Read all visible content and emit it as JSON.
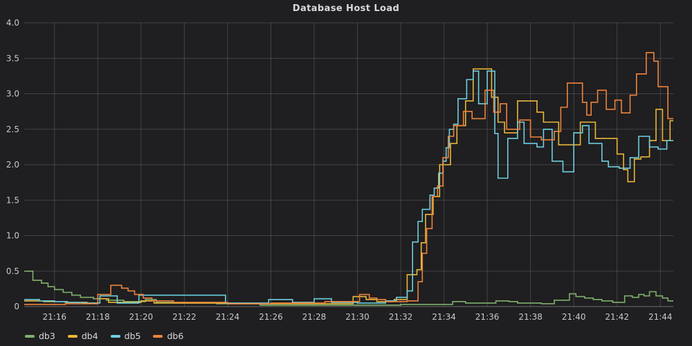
{
  "title": "Database Host Load",
  "chart_data": {
    "type": "line",
    "line_style": "step-after",
    "title": "Database Host Load",
    "xlabel": "",
    "ylabel": "",
    "ylim": [
      0,
      4
    ],
    "grid": true,
    "legend_position": "bottom-left",
    "background_color": "#1f1e20",
    "grid_color": "rgba(255,255,255,0.16)",
    "axis_text_color": "#c9cacb",
    "x_domain_minutes_after_21h": [
      14.6,
      44.6
    ],
    "x_ticks": [
      {
        "minute": 16,
        "label": "21:16"
      },
      {
        "minute": 18,
        "label": "21:18"
      },
      {
        "minute": 20,
        "label": "21:20"
      },
      {
        "minute": 22,
        "label": "21:22"
      },
      {
        "minute": 24,
        "label": "21:24"
      },
      {
        "minute": 26,
        "label": "21:26"
      },
      {
        "minute": 28,
        "label": "21:28"
      },
      {
        "minute": 30,
        "label": "21:30"
      },
      {
        "minute": 32,
        "label": "21:32"
      },
      {
        "minute": 34,
        "label": "21:34"
      },
      {
        "minute": 36,
        "label": "21:36"
      },
      {
        "minute": 38,
        "label": "21:38"
      },
      {
        "minute": 40,
        "label": "21:40"
      },
      {
        "minute": 42,
        "label": "21:42"
      },
      {
        "minute": 44,
        "label": "21:44"
      }
    ],
    "y_ticks": [
      {
        "value": 4.0,
        "label": "4.0"
      },
      {
        "value": 3.5,
        "label": "3.5"
      },
      {
        "value": 3.0,
        "label": "3.0"
      },
      {
        "value": 2.5,
        "label": "2.5"
      },
      {
        "value": 2.0,
        "label": "2.0"
      },
      {
        "value": 1.5,
        "label": "1.5"
      },
      {
        "value": 1.0,
        "label": "1.0"
      },
      {
        "value": 0.5,
        "label": "0.5"
      },
      {
        "value": 0,
        "label": "0"
      }
    ],
    "series": [
      {
        "name": "db3",
        "color": "#7EB26D",
        "points": [
          [
            14.6,
            0.5
          ],
          [
            15.0,
            0.37
          ],
          [
            15.4,
            0.33
          ],
          [
            15.7,
            0.28
          ],
          [
            16.0,
            0.24
          ],
          [
            16.4,
            0.2
          ],
          [
            16.8,
            0.16
          ],
          [
            17.2,
            0.13
          ],
          [
            17.8,
            0.11
          ],
          [
            18.4,
            0.09
          ],
          [
            19.2,
            0.07
          ],
          [
            20.2,
            0.1
          ],
          [
            20.7,
            0.06
          ],
          [
            21.5,
            0.05
          ],
          [
            23.5,
            0.04
          ],
          [
            25.5,
            0.02
          ],
          [
            32.0,
            0.03
          ],
          [
            34.4,
            0.07
          ],
          [
            35.0,
            0.05
          ],
          [
            36.4,
            0.08
          ],
          [
            37.0,
            0.07
          ],
          [
            37.4,
            0.05
          ],
          [
            38.5,
            0.04
          ],
          [
            39.1,
            0.09
          ],
          [
            39.8,
            0.18
          ],
          [
            40.1,
            0.14
          ],
          [
            40.5,
            0.12
          ],
          [
            40.9,
            0.1
          ],
          [
            41.3,
            0.08
          ],
          [
            41.8,
            0.06
          ],
          [
            42.35,
            0.15
          ],
          [
            42.7,
            0.13
          ],
          [
            43.0,
            0.17
          ],
          [
            43.25,
            0.15
          ],
          [
            43.5,
            0.21
          ],
          [
            43.8,
            0.15
          ],
          [
            44.1,
            0.12
          ],
          [
            44.35,
            0.08
          ]
        ]
      },
      {
        "name": "db4",
        "color": "#EAB839",
        "points": [
          [
            14.6,
            0.08
          ],
          [
            15.5,
            0.07
          ],
          [
            16.5,
            0.06
          ],
          [
            17.5,
            0.05
          ],
          [
            18.0,
            0.11
          ],
          [
            18.5,
            0.06
          ],
          [
            20.0,
            0.08
          ],
          [
            20.6,
            0.05
          ],
          [
            24.0,
            0.04
          ],
          [
            29.8,
            0.14
          ],
          [
            30.4,
            0.1
          ],
          [
            30.9,
            0.07
          ],
          [
            31.7,
            0.1
          ],
          [
            32.3,
            0.45
          ],
          [
            32.75,
            0.52
          ],
          [
            32.95,
            0.9
          ],
          [
            33.15,
            1.3
          ],
          [
            33.5,
            1.55
          ],
          [
            33.8,
            2.0
          ],
          [
            34.3,
            2.3
          ],
          [
            34.6,
            2.55
          ],
          [
            35.0,
            2.9
          ],
          [
            35.35,
            3.35
          ],
          [
            36.2,
            2.95
          ],
          [
            36.5,
            2.6
          ],
          [
            36.8,
            2.45
          ],
          [
            37.4,
            2.9
          ],
          [
            38.3,
            2.74
          ],
          [
            38.6,
            2.6
          ],
          [
            39.3,
            2.28
          ],
          [
            40.3,
            2.6
          ],
          [
            41.0,
            2.37
          ],
          [
            42.0,
            2.15
          ],
          [
            42.3,
            1.93
          ],
          [
            42.5,
            1.76
          ],
          [
            42.8,
            2.08
          ],
          [
            43.1,
            2.11
          ],
          [
            43.5,
            2.34
          ],
          [
            43.8,
            2.78
          ],
          [
            44.1,
            2.34
          ],
          [
            44.45,
            2.62
          ]
        ]
      },
      {
        "name": "db5",
        "color": "#6ED0E0",
        "points": [
          [
            14.6,
            0.1
          ],
          [
            15.3,
            0.08
          ],
          [
            16.0,
            0.07
          ],
          [
            16.6,
            0.06
          ],
          [
            17.3,
            0.05
          ],
          [
            18.1,
            0.15
          ],
          [
            18.9,
            0.05
          ],
          [
            19.9,
            0.16
          ],
          [
            23.9,
            0.05
          ],
          [
            25.9,
            0.1
          ],
          [
            27.0,
            0.06
          ],
          [
            28.0,
            0.11
          ],
          [
            28.8,
            0.06
          ],
          [
            30.0,
            0.05
          ],
          [
            31.3,
            0.08
          ],
          [
            31.8,
            0.13
          ],
          [
            32.3,
            0.22
          ],
          [
            32.55,
            0.91
          ],
          [
            32.8,
            1.2
          ],
          [
            33.0,
            1.37
          ],
          [
            33.35,
            1.57
          ],
          [
            33.55,
            1.67
          ],
          [
            33.75,
            1.88
          ],
          [
            33.95,
            2.05
          ],
          [
            34.1,
            2.24
          ],
          [
            34.25,
            2.5
          ],
          [
            34.45,
            2.57
          ],
          [
            34.65,
            2.93
          ],
          [
            35.05,
            3.2
          ],
          [
            35.35,
            3.32
          ],
          [
            35.6,
            2.86
          ],
          [
            36.0,
            3.32
          ],
          [
            36.35,
            2.44
          ],
          [
            36.5,
            1.81
          ],
          [
            36.95,
            2.37
          ],
          [
            37.4,
            2.6
          ],
          [
            37.7,
            2.3
          ],
          [
            38.3,
            2.25
          ],
          [
            38.6,
            2.5
          ],
          [
            39.0,
            2.05
          ],
          [
            39.5,
            1.9
          ],
          [
            40.0,
            2.45
          ],
          [
            40.4,
            2.55
          ],
          [
            40.7,
            2.3
          ],
          [
            41.3,
            2.05
          ],
          [
            41.6,
            1.97
          ],
          [
            42.1,
            1.95
          ],
          [
            42.6,
            2.1
          ],
          [
            43.0,
            2.4
          ],
          [
            43.5,
            2.25
          ],
          [
            43.9,
            2.22
          ],
          [
            44.3,
            2.34
          ]
        ]
      },
      {
        "name": "db6",
        "color": "#EF843C",
        "points": [
          [
            14.6,
            0.03
          ],
          [
            16.5,
            0.04
          ],
          [
            18.0,
            0.17
          ],
          [
            18.6,
            0.3
          ],
          [
            19.1,
            0.26
          ],
          [
            19.4,
            0.22
          ],
          [
            19.7,
            0.17
          ],
          [
            20.1,
            0.12
          ],
          [
            20.5,
            0.08
          ],
          [
            21.5,
            0.06
          ],
          [
            24.0,
            0.04
          ],
          [
            26.0,
            0.05
          ],
          [
            28.5,
            0.07
          ],
          [
            30.1,
            0.17
          ],
          [
            30.55,
            0.12
          ],
          [
            30.9,
            0.1
          ],
          [
            31.3,
            0.07
          ],
          [
            32.3,
            0.08
          ],
          [
            32.8,
            0.35
          ],
          [
            33.0,
            0.75
          ],
          [
            33.2,
            1.1
          ],
          [
            33.45,
            1.55
          ],
          [
            33.7,
            1.7
          ],
          [
            33.95,
            2.1
          ],
          [
            34.2,
            2.4
          ],
          [
            34.45,
            2.55
          ],
          [
            34.9,
            2.75
          ],
          [
            35.3,
            2.65
          ],
          [
            35.9,
            3.05
          ],
          [
            36.3,
            2.74
          ],
          [
            36.6,
            2.86
          ],
          [
            36.9,
            2.5
          ],
          [
            37.5,
            2.63
          ],
          [
            38.0,
            2.39
          ],
          [
            38.5,
            2.35
          ],
          [
            39.1,
            2.47
          ],
          [
            39.4,
            2.81
          ],
          [
            39.7,
            3.15
          ],
          [
            40.4,
            2.88
          ],
          [
            40.6,
            2.7
          ],
          [
            40.8,
            2.88
          ],
          [
            41.1,
            3.05
          ],
          [
            41.5,
            2.78
          ],
          [
            41.9,
            2.91
          ],
          [
            42.2,
            2.73
          ],
          [
            42.6,
            2.98
          ],
          [
            42.9,
            3.28
          ],
          [
            43.35,
            3.58
          ],
          [
            43.7,
            3.46
          ],
          [
            43.9,
            3.1
          ],
          [
            44.35,
            2.65
          ]
        ]
      }
    ]
  }
}
